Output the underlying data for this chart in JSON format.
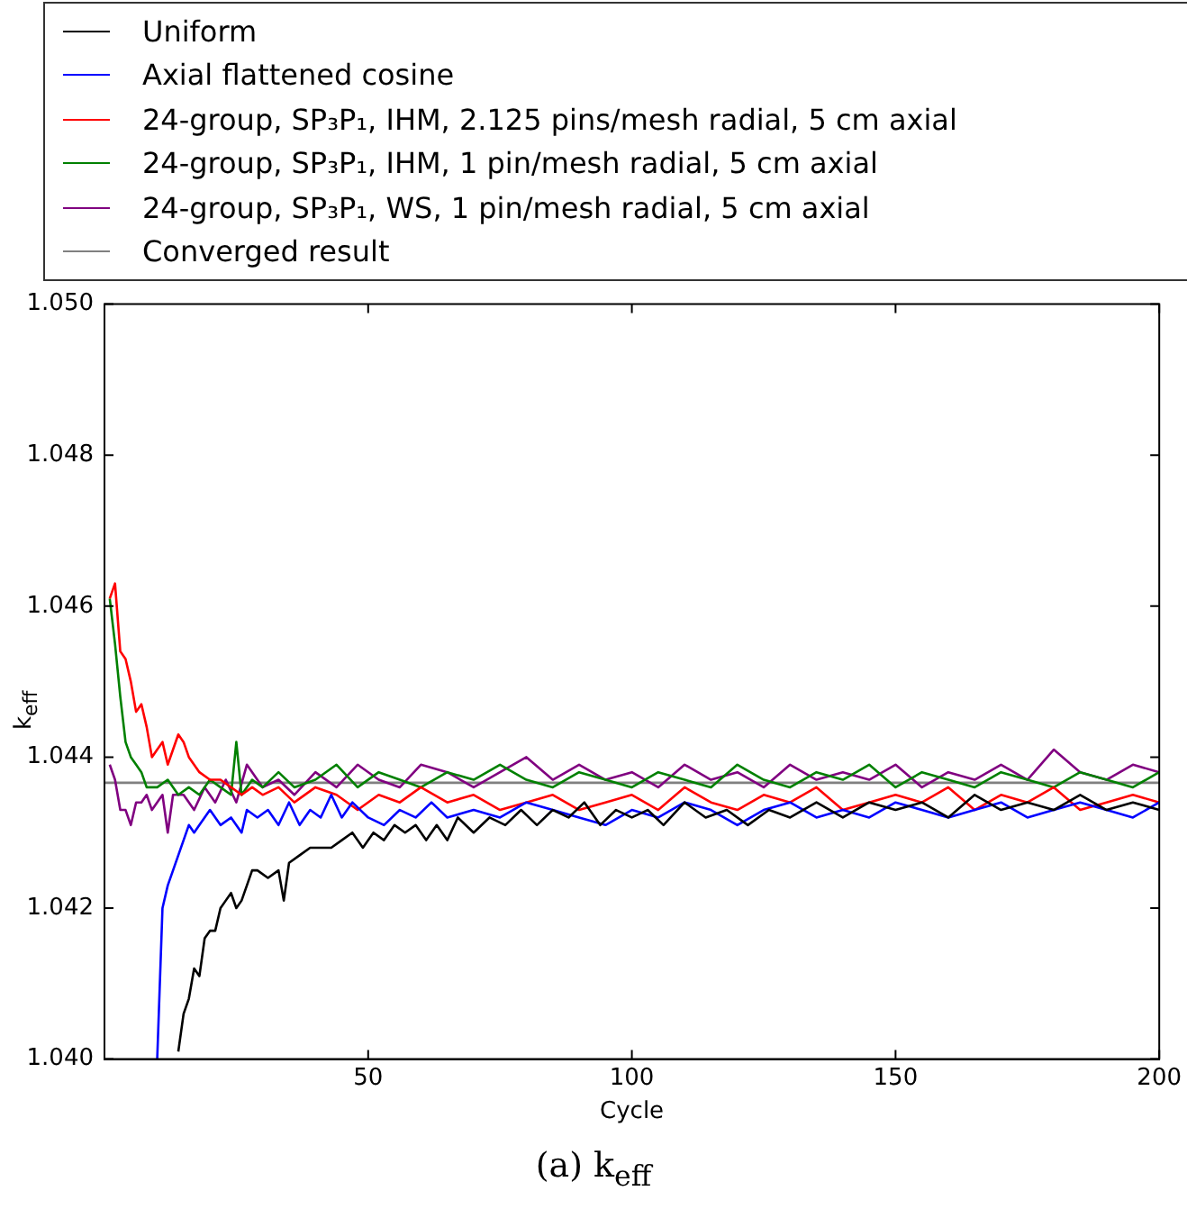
{
  "chart_data": {
    "type": "line",
    "xlabel": "Cycle",
    "ylabel": "k$_{eff}$",
    "annotations": [
      "(a) k$_{eff}$"
    ],
    "xlim": [
      0,
      200
    ],
    "xticks": [
      50,
      100,
      150,
      200
    ],
    "ylim": [
      1.04,
      1.05
    ],
    "yticks": [
      {
        "value": 1.04,
        "label": "1.040"
      },
      {
        "value": 1.042,
        "label": "1.042"
      },
      {
        "value": 1.044,
        "label": "1.044"
      },
      {
        "value": 1.046,
        "label": "1.046"
      },
      {
        "value": 1.048,
        "label": "1.048"
      },
      {
        "value": 1.05,
        "label": "1.050"
      }
    ],
    "grid": false,
    "legend": "top",
    "marker": "none",
    "line_style": "solid",
    "series": [
      {
        "name": "Uniform",
        "color": "#000000",
        "x": [
          14,
          15,
          16,
          17,
          18,
          19,
          20,
          21,
          22,
          23,
          24,
          25,
          26,
          28,
          29,
          31,
          33,
          34,
          35,
          37,
          39,
          41,
          43,
          45,
          47,
          49,
          51,
          53,
          55,
          57,
          59,
          61,
          63,
          65,
          67,
          70,
          73,
          76,
          79,
          82,
          85,
          88,
          91,
          94,
          97,
          100,
          103,
          106,
          110,
          114,
          118,
          122,
          126,
          130,
          135,
          140,
          145,
          150,
          155,
          160,
          165,
          170,
          175,
          180,
          185,
          190,
          195,
          200
        ],
        "values": [
          1.0401,
          1.0406,
          1.0408,
          1.0412,
          1.0411,
          1.0416,
          1.0417,
          1.0417,
          1.042,
          1.0421,
          1.0422,
          1.042,
          1.0421,
          1.0425,
          1.0425,
          1.0424,
          1.0425,
          1.0421,
          1.0426,
          1.0427,
          1.0428,
          1.0428,
          1.0428,
          1.0429,
          1.043,
          1.0428,
          1.043,
          1.0429,
          1.0431,
          1.043,
          1.0431,
          1.0429,
          1.0431,
          1.0429,
          1.0432,
          1.043,
          1.0432,
          1.0431,
          1.0433,
          1.0431,
          1.0433,
          1.0432,
          1.0434,
          1.0431,
          1.0433,
          1.0432,
          1.0433,
          1.0431,
          1.0434,
          1.0432,
          1.0433,
          1.0431,
          1.0433,
          1.0432,
          1.0434,
          1.0432,
          1.0434,
          1.0433,
          1.0434,
          1.0432,
          1.0435,
          1.0433,
          1.0434,
          1.0433,
          1.0435,
          1.0433,
          1.0434,
          1.0433
        ]
      },
      {
        "name": "Axial flattened cosine",
        "color": "#0000ff",
        "x": [
          10,
          11,
          12,
          13,
          14,
          15,
          16,
          17,
          18,
          20,
          22,
          24,
          26,
          27,
          29,
          31,
          33,
          35,
          37,
          39,
          41,
          43,
          45,
          47,
          50,
          53,
          56,
          59,
          62,
          65,
          70,
          75,
          80,
          85,
          90,
          95,
          100,
          105,
          110,
          115,
          120,
          125,
          130,
          135,
          140,
          145,
          150,
          155,
          160,
          165,
          170,
          175,
          180,
          185,
          190,
          195,
          200
        ],
        "values": [
          1.04,
          1.042,
          1.0423,
          1.0425,
          1.0427,
          1.0429,
          1.0431,
          1.043,
          1.0431,
          1.0433,
          1.0431,
          1.0432,
          1.043,
          1.0433,
          1.0432,
          1.0433,
          1.0431,
          1.0434,
          1.0431,
          1.0433,
          1.0432,
          1.0435,
          1.0432,
          1.0434,
          1.0432,
          1.0431,
          1.0433,
          1.0432,
          1.0434,
          1.0432,
          1.0433,
          1.0432,
          1.0434,
          1.0433,
          1.0432,
          1.0431,
          1.0433,
          1.0432,
          1.0434,
          1.0433,
          1.0431,
          1.0433,
          1.0434,
          1.0432,
          1.0433,
          1.0432,
          1.0434,
          1.0433,
          1.0432,
          1.0433,
          1.0434,
          1.0432,
          1.0433,
          1.0434,
          1.0433,
          1.0432,
          1.0434
        ]
      },
      {
        "name": "24-group, SP₃P₁, IHM, 2.125 pins/mesh radial, 5 cm axial",
        "color": "#ff0000",
        "x": [
          1,
          2,
          3,
          4,
          5,
          6,
          7,
          8,
          9,
          10,
          11,
          12,
          13,
          14,
          15,
          16,
          18,
          20,
          22,
          24,
          26,
          28,
          30,
          33,
          36,
          40,
          44,
          48,
          52,
          56,
          60,
          65,
          70,
          75,
          80,
          85,
          90,
          95,
          100,
          105,
          110,
          115,
          120,
          125,
          130,
          135,
          140,
          145,
          150,
          155,
          160,
          165,
          170,
          175,
          180,
          185,
          190,
          195,
          200
        ],
        "values": [
          1.0461,
          1.0463,
          1.0454,
          1.0453,
          1.045,
          1.0446,
          1.0447,
          1.0444,
          1.044,
          1.0441,
          1.0442,
          1.0439,
          1.0441,
          1.0443,
          1.0442,
          1.044,
          1.0438,
          1.0437,
          1.0437,
          1.0436,
          1.0435,
          1.0436,
          1.0435,
          1.0436,
          1.0434,
          1.0436,
          1.0435,
          1.0433,
          1.0435,
          1.0434,
          1.0436,
          1.0434,
          1.0435,
          1.0433,
          1.0434,
          1.0435,
          1.0433,
          1.0434,
          1.0435,
          1.0433,
          1.0436,
          1.0434,
          1.0433,
          1.0435,
          1.0434,
          1.0436,
          1.0433,
          1.0434,
          1.0435,
          1.0434,
          1.0436,
          1.0433,
          1.0435,
          1.0434,
          1.0436,
          1.0433,
          1.0434,
          1.0435,
          1.0434
        ]
      },
      {
        "name": "24-group, SP₃P₁, IHM, 1 pin/mesh radial, 5 cm axial",
        "color": "#008000",
        "x": [
          1,
          2,
          3,
          4,
          5,
          6,
          7,
          8,
          9,
          10,
          12,
          14,
          16,
          18,
          20,
          22,
          24,
          25,
          26,
          28,
          30,
          33,
          36,
          40,
          44,
          48,
          52,
          56,
          60,
          65,
          70,
          75,
          80,
          85,
          90,
          95,
          100,
          105,
          110,
          115,
          120,
          125,
          130,
          135,
          140,
          145,
          150,
          155,
          160,
          165,
          170,
          175,
          180,
          185,
          190,
          195,
          200
        ],
        "values": [
          1.0461,
          1.0455,
          1.0448,
          1.0442,
          1.044,
          1.0439,
          1.0438,
          1.0436,
          1.0436,
          1.0436,
          1.0437,
          1.0435,
          1.0436,
          1.0435,
          1.0437,
          1.0436,
          1.0435,
          1.0442,
          1.0435,
          1.0437,
          1.0436,
          1.0438,
          1.0436,
          1.0437,
          1.0439,
          1.0436,
          1.0438,
          1.0437,
          1.0436,
          1.0438,
          1.0437,
          1.0439,
          1.0437,
          1.0436,
          1.0438,
          1.0437,
          1.0436,
          1.0438,
          1.0437,
          1.0436,
          1.0439,
          1.0437,
          1.0436,
          1.0438,
          1.0437,
          1.0439,
          1.0436,
          1.0438,
          1.0437,
          1.0436,
          1.0438,
          1.0437,
          1.0436,
          1.0438,
          1.0437,
          1.0436,
          1.0438
        ]
      },
      {
        "name": "24-group, SP₃P₁, WS, 1 pin/mesh radial, 5 cm axial",
        "color": "#800080",
        "x": [
          1,
          2,
          3,
          4,
          5,
          6,
          7,
          8,
          9,
          11,
          12,
          13,
          15,
          17,
          19,
          21,
          23,
          25,
          27,
          30,
          33,
          36,
          40,
          44,
          48,
          52,
          56,
          60,
          65,
          70,
          75,
          80,
          85,
          90,
          95,
          100,
          105,
          110,
          115,
          120,
          125,
          130,
          135,
          140,
          145,
          150,
          155,
          160,
          165,
          170,
          175,
          180,
          185,
          190,
          195,
          200
        ],
        "values": [
          1.0439,
          1.0437,
          1.0433,
          1.0433,
          1.0431,
          1.0434,
          1.0434,
          1.0435,
          1.0433,
          1.0435,
          1.043,
          1.0435,
          1.0435,
          1.0433,
          1.0436,
          1.0434,
          1.0437,
          1.0434,
          1.0439,
          1.0436,
          1.0437,
          1.0435,
          1.0438,
          1.0436,
          1.0439,
          1.0437,
          1.0436,
          1.0439,
          1.0438,
          1.0436,
          1.0438,
          1.044,
          1.0437,
          1.0439,
          1.0437,
          1.0438,
          1.0436,
          1.0439,
          1.0437,
          1.0438,
          1.0436,
          1.0439,
          1.0437,
          1.0438,
          1.0437,
          1.0439,
          1.0436,
          1.0438,
          1.0437,
          1.0439,
          1.0437,
          1.0441,
          1.0438,
          1.0437,
          1.0439,
          1.0438
        ]
      },
      {
        "name": "Converged result",
        "color": "#808080",
        "x": [
          0,
          200
        ],
        "values": [
          1.04366,
          1.04366
        ]
      }
    ]
  }
}
